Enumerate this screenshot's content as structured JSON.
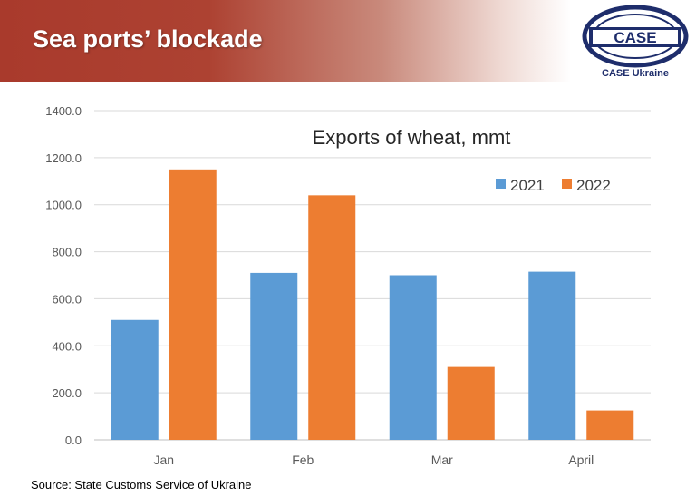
{
  "banner": {
    "title": "Sea ports’ blockade"
  },
  "logo": {
    "text": "CASE",
    "caption": "CASE Ukraine",
    "icon": "case-logo-icon"
  },
  "source": "Source: State Customs Service of Ukraine",
  "colors": {
    "series_2021": "#5b9bd5",
    "series_2022": "#ed7d31",
    "banner": "#a93a2c",
    "logo": "#1e2d6b"
  },
  "chart_data": {
    "type": "bar",
    "title": "Exports of wheat, mmt",
    "categories": [
      "Jan",
      "Feb",
      "Mar",
      "April"
    ],
    "series": [
      {
        "name": "2021",
        "values": [
          510,
          710,
          700,
          715
        ]
      },
      {
        "name": "2022",
        "values": [
          1150,
          1040,
          310,
          125
        ]
      }
    ],
    "ylim": [
      0,
      1400
    ],
    "yticks": [
      "0.0",
      "200.0",
      "400.0",
      "600.0",
      "800.0",
      "1000.0",
      "1200.0",
      "1400.0"
    ],
    "grid": true,
    "legend": "top-right"
  }
}
